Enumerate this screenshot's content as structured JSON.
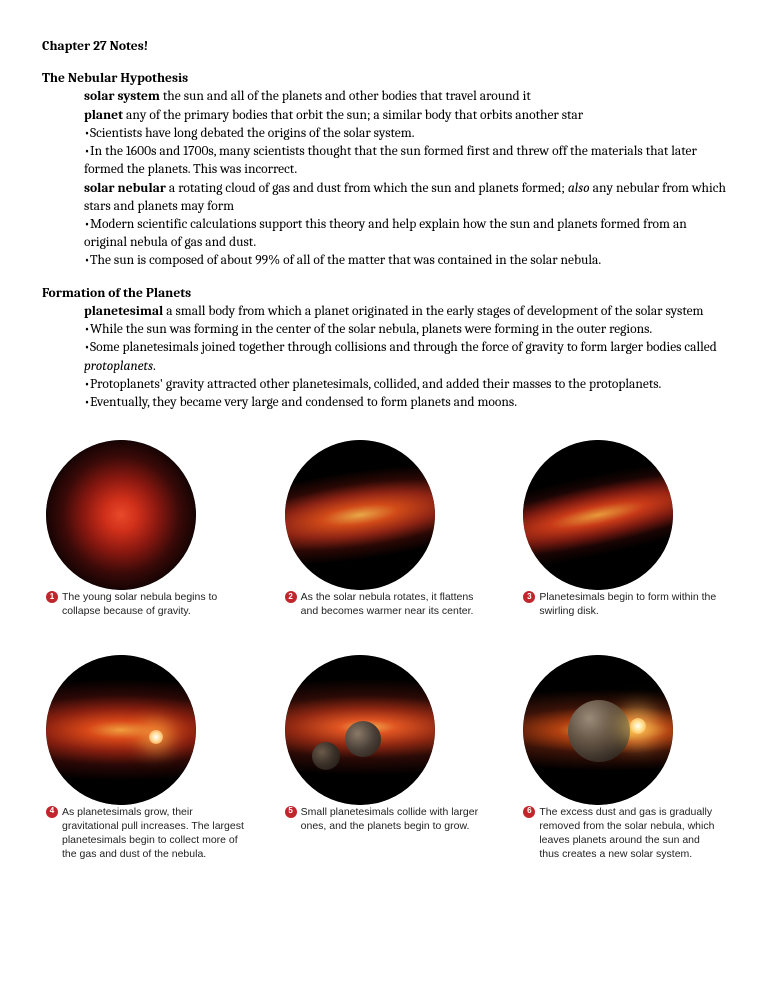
{
  "title": "Chapter 27 Notes!",
  "sections": [
    {
      "heading": "The Nebular Hypothesis",
      "lines": [
        {
          "term": "solar system",
          "text": " the sun and all of the planets and other bodies that travel around it"
        },
        {
          "term": "planet",
          "text": " any of the primary bodies that orbit the sun; a similar body that orbits another star"
        },
        {
          "bullet": "•",
          "text": "Scientists have long debated the origins of the solar system."
        },
        {
          "bullet": "•",
          "text": "In the 1600s and 1700s, many scientists thought that the sun formed first and threw off the materials that later formed the planets.  This was incorrect."
        },
        {
          "term": "solar nebular",
          "text": " a rotating cloud of gas and dust from which the sun and planets formed; ",
          "italic": "also",
          "text2": " any nebular from which stars and planets may form"
        },
        {
          "bullet": "•",
          "text": "Modern scientific calculations support this theory and help explain how the sun and planets formed from an original nebula of gas and dust."
        },
        {
          "bullet": "•",
          "text": "The sun is composed of about 99% of all of the matter that was contained in the solar nebula."
        }
      ]
    },
    {
      "heading": "Formation of the Planets",
      "lines": [
        {
          "term": "planetesimal",
          "text": " a small body from which a planet originated in the early stages of development of the solar system"
        },
        {
          "bullet": "•",
          "text": "While the sun was forming in the center of the solar nebula, planets were forming in the outer regions."
        },
        {
          "bullet": "•",
          "text": "Some planetesimals joined together through collisions and through the force of gravity to form larger bodies called ",
          "italic": "protoplanets",
          "text2": "."
        },
        {
          "bullet": "•",
          "text": "Protoplanets' gravity attracted other planetesimals, collided, and added their masses to the protoplanets."
        },
        {
          "bullet": "•",
          "text": "Eventually, they became very large and condensed to form planets and moons."
        }
      ]
    }
  ],
  "figures": [
    {
      "num": "1",
      "caption": "The young solar nebula begins to collapse because of gravity.",
      "img_class": "img1"
    },
    {
      "num": "2",
      "caption": "As the solar nebula rotates, it flattens and becomes warmer near its center.",
      "img_class": "img2"
    },
    {
      "num": "3",
      "caption": "Planetesimals begin to form within the swirling disk.",
      "img_class": "img3"
    },
    {
      "num": "4",
      "caption": "As planetesimals grow, their gravitational pull increases. The largest planetesimals begin to collect more of the gas and dust of the nebula.",
      "img_class": "img4"
    },
    {
      "num": "5",
      "caption": "Small planetesimals collide with larger ones, and the planets begin to grow.",
      "img_class": "img5"
    },
    {
      "num": "6",
      "caption": "The excess dust and gas is gradually removed from the solar nebula, which leaves planets around the sun and thus creates a new solar system.",
      "img_class": "img6"
    }
  ],
  "colors": {
    "badge": "#c0272d",
    "text": "#000000",
    "caption_text": "#222222",
    "background": "#ffffff"
  }
}
